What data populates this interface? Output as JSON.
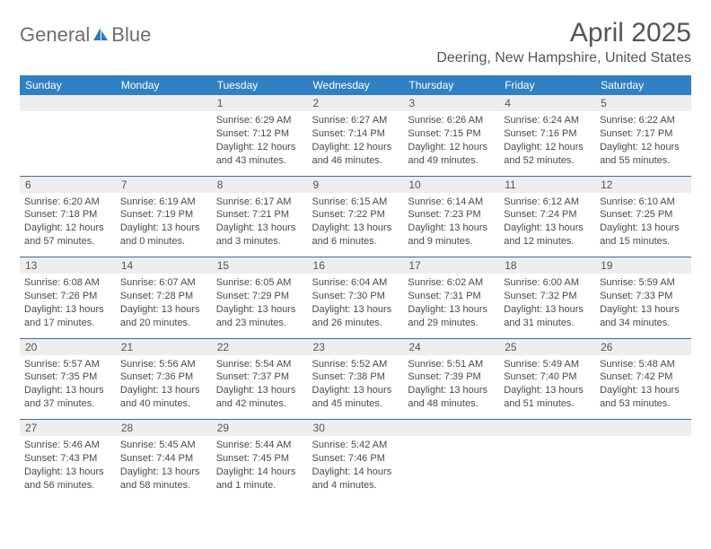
{
  "logo": {
    "general": "General",
    "blue": "Blue",
    "icon_color": "#2f79bd"
  },
  "header": {
    "month_title": "April 2025",
    "location": "Deering, New Hampshire, United States"
  },
  "styling": {
    "header_bg": "#3080c4",
    "header_text_color": "#ffffff",
    "daynum_bg": "#eeeeee",
    "border_color": "#3a6ea0",
    "body_text_color": "#4a4a4a",
    "title_color": "#555555",
    "logo_text_color": "#6e6e6e",
    "month_title_fontsize": 30,
    "location_fontsize": 16,
    "dayheader_fontsize": 12,
    "cell_fontsize": 11
  },
  "day_headers": [
    "Sunday",
    "Monday",
    "Tuesday",
    "Wednesday",
    "Thursday",
    "Friday",
    "Saturday"
  ],
  "weeks": [
    [
      {},
      {},
      {
        "n": "1",
        "sr": "Sunrise: 6:29 AM",
        "ss": "Sunset: 7:12 PM",
        "d1": "Daylight: 12 hours",
        "d2": "and 43 minutes."
      },
      {
        "n": "2",
        "sr": "Sunrise: 6:27 AM",
        "ss": "Sunset: 7:14 PM",
        "d1": "Daylight: 12 hours",
        "d2": "and 46 minutes."
      },
      {
        "n": "3",
        "sr": "Sunrise: 6:26 AM",
        "ss": "Sunset: 7:15 PM",
        "d1": "Daylight: 12 hours",
        "d2": "and 49 minutes."
      },
      {
        "n": "4",
        "sr": "Sunrise: 6:24 AM",
        "ss": "Sunset: 7:16 PM",
        "d1": "Daylight: 12 hours",
        "d2": "and 52 minutes."
      },
      {
        "n": "5",
        "sr": "Sunrise: 6:22 AM",
        "ss": "Sunset: 7:17 PM",
        "d1": "Daylight: 12 hours",
        "d2": "and 55 minutes."
      }
    ],
    [
      {
        "n": "6",
        "sr": "Sunrise: 6:20 AM",
        "ss": "Sunset: 7:18 PM",
        "d1": "Daylight: 12 hours",
        "d2": "and 57 minutes."
      },
      {
        "n": "7",
        "sr": "Sunrise: 6:19 AM",
        "ss": "Sunset: 7:19 PM",
        "d1": "Daylight: 13 hours",
        "d2": "and 0 minutes."
      },
      {
        "n": "8",
        "sr": "Sunrise: 6:17 AM",
        "ss": "Sunset: 7:21 PM",
        "d1": "Daylight: 13 hours",
        "d2": "and 3 minutes."
      },
      {
        "n": "9",
        "sr": "Sunrise: 6:15 AM",
        "ss": "Sunset: 7:22 PM",
        "d1": "Daylight: 13 hours",
        "d2": "and 6 minutes."
      },
      {
        "n": "10",
        "sr": "Sunrise: 6:14 AM",
        "ss": "Sunset: 7:23 PM",
        "d1": "Daylight: 13 hours",
        "d2": "and 9 minutes."
      },
      {
        "n": "11",
        "sr": "Sunrise: 6:12 AM",
        "ss": "Sunset: 7:24 PM",
        "d1": "Daylight: 13 hours",
        "d2": "and 12 minutes."
      },
      {
        "n": "12",
        "sr": "Sunrise: 6:10 AM",
        "ss": "Sunset: 7:25 PM",
        "d1": "Daylight: 13 hours",
        "d2": "and 15 minutes."
      }
    ],
    [
      {
        "n": "13",
        "sr": "Sunrise: 6:08 AM",
        "ss": "Sunset: 7:26 PM",
        "d1": "Daylight: 13 hours",
        "d2": "and 17 minutes."
      },
      {
        "n": "14",
        "sr": "Sunrise: 6:07 AM",
        "ss": "Sunset: 7:28 PM",
        "d1": "Daylight: 13 hours",
        "d2": "and 20 minutes."
      },
      {
        "n": "15",
        "sr": "Sunrise: 6:05 AM",
        "ss": "Sunset: 7:29 PM",
        "d1": "Daylight: 13 hours",
        "d2": "and 23 minutes."
      },
      {
        "n": "16",
        "sr": "Sunrise: 6:04 AM",
        "ss": "Sunset: 7:30 PM",
        "d1": "Daylight: 13 hours",
        "d2": "and 26 minutes."
      },
      {
        "n": "17",
        "sr": "Sunrise: 6:02 AM",
        "ss": "Sunset: 7:31 PM",
        "d1": "Daylight: 13 hours",
        "d2": "and 29 minutes."
      },
      {
        "n": "18",
        "sr": "Sunrise: 6:00 AM",
        "ss": "Sunset: 7:32 PM",
        "d1": "Daylight: 13 hours",
        "d2": "and 31 minutes."
      },
      {
        "n": "19",
        "sr": "Sunrise: 5:59 AM",
        "ss": "Sunset: 7:33 PM",
        "d1": "Daylight: 13 hours",
        "d2": "and 34 minutes."
      }
    ],
    [
      {
        "n": "20",
        "sr": "Sunrise: 5:57 AM",
        "ss": "Sunset: 7:35 PM",
        "d1": "Daylight: 13 hours",
        "d2": "and 37 minutes."
      },
      {
        "n": "21",
        "sr": "Sunrise: 5:56 AM",
        "ss": "Sunset: 7:36 PM",
        "d1": "Daylight: 13 hours",
        "d2": "and 40 minutes."
      },
      {
        "n": "22",
        "sr": "Sunrise: 5:54 AM",
        "ss": "Sunset: 7:37 PM",
        "d1": "Daylight: 13 hours",
        "d2": "and 42 minutes."
      },
      {
        "n": "23",
        "sr": "Sunrise: 5:52 AM",
        "ss": "Sunset: 7:38 PM",
        "d1": "Daylight: 13 hours",
        "d2": "and 45 minutes."
      },
      {
        "n": "24",
        "sr": "Sunrise: 5:51 AM",
        "ss": "Sunset: 7:39 PM",
        "d1": "Daylight: 13 hours",
        "d2": "and 48 minutes."
      },
      {
        "n": "25",
        "sr": "Sunrise: 5:49 AM",
        "ss": "Sunset: 7:40 PM",
        "d1": "Daylight: 13 hours",
        "d2": "and 51 minutes."
      },
      {
        "n": "26",
        "sr": "Sunrise: 5:48 AM",
        "ss": "Sunset: 7:42 PM",
        "d1": "Daylight: 13 hours",
        "d2": "and 53 minutes."
      }
    ],
    [
      {
        "n": "27",
        "sr": "Sunrise: 5:46 AM",
        "ss": "Sunset: 7:43 PM",
        "d1": "Daylight: 13 hours",
        "d2": "and 56 minutes."
      },
      {
        "n": "28",
        "sr": "Sunrise: 5:45 AM",
        "ss": "Sunset: 7:44 PM",
        "d1": "Daylight: 13 hours",
        "d2": "and 58 minutes."
      },
      {
        "n": "29",
        "sr": "Sunrise: 5:44 AM",
        "ss": "Sunset: 7:45 PM",
        "d1": "Daylight: 14 hours",
        "d2": "and 1 minute."
      },
      {
        "n": "30",
        "sr": "Sunrise: 5:42 AM",
        "ss": "Sunset: 7:46 PM",
        "d1": "Daylight: 14 hours",
        "d2": "and 4 minutes."
      },
      {},
      {},
      {}
    ]
  ]
}
